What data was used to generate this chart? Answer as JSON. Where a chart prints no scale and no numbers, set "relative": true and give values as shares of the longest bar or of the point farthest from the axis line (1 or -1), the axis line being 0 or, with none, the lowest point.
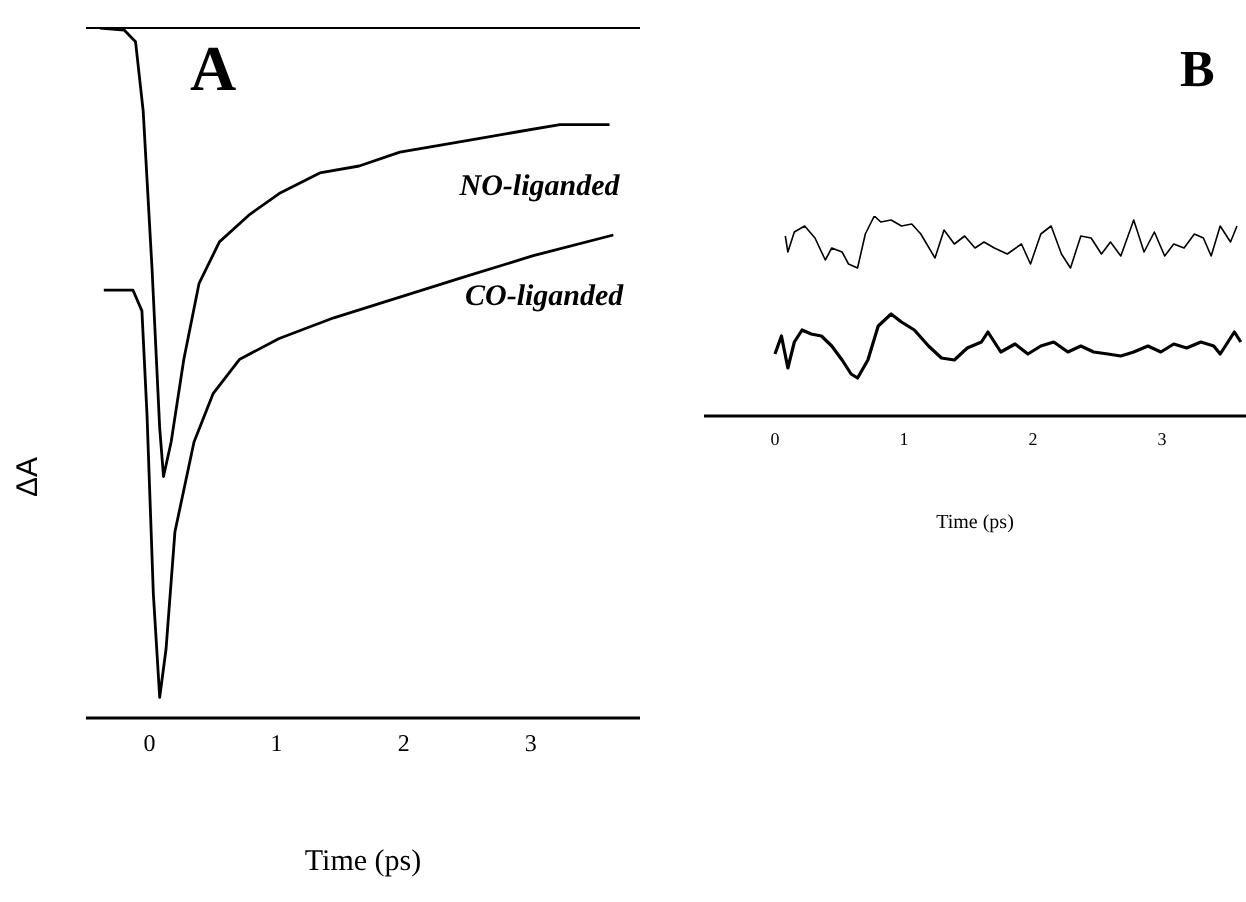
{
  "chart_data": [
    {
      "type": "line",
      "title": "A",
      "xlabel": "Time (ps)",
      "ylabel": "ΔA",
      "relative": true,
      "xlim": [
        -0.5,
        3.86
      ],
      "xticks": [
        0,
        1,
        2,
        3
      ],
      "ref_lines": [
        {
          "axis": "y",
          "value": 1
        }
      ],
      "series": [
        {
          "name": "NO-liganded",
          "color": "#000000",
          "x": [
            -0.39,
            -0.2,
            -0.11,
            -0.05,
            0.02,
            0.08,
            0.11,
            0.17,
            0.27,
            0.39,
            0.55,
            0.79,
            1.02,
            1.34,
            1.65,
            1.97,
            2.28,
            2.6,
            2.91,
            3.23,
            3.62
          ],
          "values": [
            1.0,
            0.997,
            0.98,
            0.88,
            0.65,
            0.42,
            0.35,
            0.4,
            0.52,
            0.63,
            0.69,
            0.73,
            0.76,
            0.79,
            0.8,
            0.82,
            0.83,
            0.84,
            0.85,
            0.86,
            0.86
          ]
        },
        {
          "name": "CO-liganded",
          "color": "#000000",
          "x": [
            -0.36,
            -0.13,
            -0.06,
            -0.02,
            0.03,
            0.08,
            0.13,
            0.2,
            0.35,
            0.5,
            0.71,
            1.02,
            1.45,
            1.97,
            2.49,
            3.02,
            3.65
          ],
          "values": [
            0.62,
            0.62,
            0.59,
            0.44,
            0.18,
            0.03,
            0.1,
            0.27,
            0.4,
            0.47,
            0.52,
            0.55,
            0.58,
            0.61,
            0.64,
            0.67,
            0.7
          ]
        }
      ]
    },
    {
      "type": "line",
      "title": "B",
      "xlabel": "Time (ps)",
      "relative": true,
      "xlim": [
        -0.55,
        3.65
      ],
      "xticks": [
        0,
        1,
        2,
        3
      ],
      "series": [
        {
          "color": "#000000",
          "x": [
            0.08,
            0.1,
            0.15,
            0.23,
            0.31,
            0.39,
            0.44,
            0.52,
            0.57,
            0.64,
            0.7,
            0.77,
            0.82,
            0.9,
            0.98,
            1.06,
            1.13,
            1.24,
            1.31,
            1.39,
            1.47,
            1.55,
            1.62,
            1.7,
            1.8,
            1.91,
            1.98,
            2.06,
            2.14,
            2.22,
            2.29,
            2.37,
            2.45,
            2.53,
            2.6,
            2.68,
            2.78,
            2.86,
            2.94,
            3.02,
            3.09,
            3.17,
            3.25,
            3.32,
            3.38,
            3.45,
            3.53,
            3.58
          ],
          "values": [
            0.9,
            0.82,
            0.92,
            0.95,
            0.89,
            0.78,
            0.84,
            0.82,
            0.76,
            0.74,
            0.91,
            1.0,
            0.97,
            0.98,
            0.95,
            0.96,
            0.91,
            0.79,
            0.93,
            0.86,
            0.9,
            0.84,
            0.87,
            0.84,
            0.81,
            0.86,
            0.76,
            0.91,
            0.95,
            0.81,
            0.74,
            0.9,
            0.89,
            0.81,
            0.87,
            0.8,
            0.98,
            0.82,
            0.92,
            0.8,
            0.86,
            0.84,
            0.91,
            0.89,
            0.8,
            0.95,
            0.87,
            0.95
          ]
        },
        {
          "color": "#000000",
          "x": [
            0.0,
            0.05,
            0.1,
            0.15,
            0.21,
            0.28,
            0.36,
            0.44,
            0.52,
            0.59,
            0.64,
            0.72,
            0.8,
            0.9,
            0.98,
            1.08,
            1.19,
            1.29,
            1.39,
            1.49,
            1.6,
            1.65,
            1.75,
            1.86,
            1.96,
            2.06,
            2.16,
            2.27,
            2.37,
            2.47,
            2.58,
            2.68,
            2.78,
            2.89,
            2.99,
            3.09,
            3.19,
            3.3,
            3.4,
            3.45,
            3.56,
            3.61
          ],
          "values": [
            0.31,
            0.4,
            0.24,
            0.37,
            0.43,
            0.41,
            0.4,
            0.35,
            0.28,
            0.21,
            0.19,
            0.28,
            0.45,
            0.51,
            0.47,
            0.43,
            0.35,
            0.29,
            0.28,
            0.34,
            0.37,
            0.42,
            0.32,
            0.36,
            0.31,
            0.35,
            0.37,
            0.32,
            0.35,
            0.32,
            0.31,
            0.3,
            0.32,
            0.35,
            0.32,
            0.36,
            0.34,
            0.37,
            0.35,
            0.31,
            0.42,
            0.37
          ]
        }
      ]
    }
  ]
}
